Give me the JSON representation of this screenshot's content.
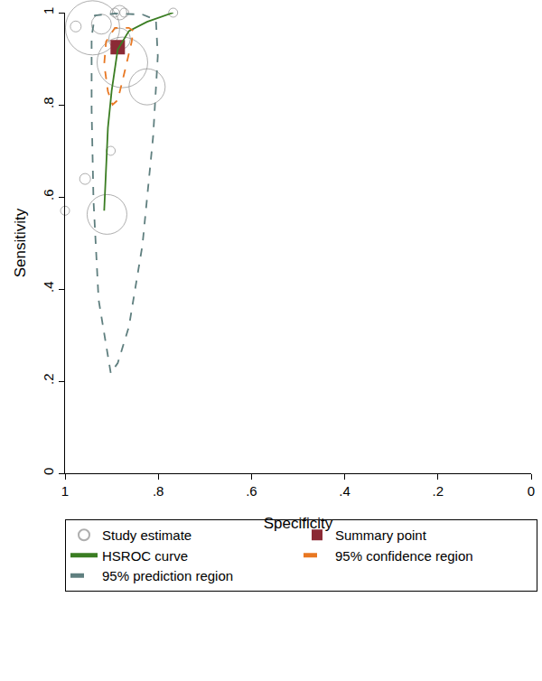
{
  "chart_data": {
    "type": "scatter",
    "xlabel": "Specificity",
    "ylabel": "Sensitivity",
    "xlim": [
      1,
      0
    ],
    "ylim": [
      0,
      1
    ],
    "xticks": [
      {
        "value": 1,
        "label": "1"
      },
      {
        "value": 0.8,
        "label": ".8"
      },
      {
        "value": 0.6,
        "label": ".6"
      },
      {
        "value": 0.4,
        "label": ".4"
      },
      {
        "value": 0.2,
        "label": ".2"
      },
      {
        "value": 0,
        "label": "0"
      }
    ],
    "yticks": [
      {
        "value": 0,
        "label": "0"
      },
      {
        "value": 0.2,
        "label": ".2"
      },
      {
        "value": 0.4,
        "label": ".4"
      },
      {
        "value": 0.6,
        "label": ".6"
      },
      {
        "value": 0.8,
        "label": ".8"
      },
      {
        "value": 1,
        "label": "1"
      }
    ],
    "grid": false,
    "legend": "bottom",
    "series": [
      {
        "name": "Study estimate",
        "type": "scatter",
        "marker": "circle-open",
        "color": "#8c8c8c",
        "x": [
          0.768,
          0.893,
          0.883,
          0.873,
          0.941,
          0.977,
          0.922,
          0.883,
          0.877,
          0.824,
          0.902,
          0.957,
          1.0,
          0.91
        ],
        "values": [
          1.0,
          1.0,
          1.0,
          1.0,
          0.967,
          0.97,
          0.975,
          0.943,
          0.892,
          0.839,
          0.7,
          0.639,
          0.57,
          0.562
        ],
        "sizes": [
          10,
          10,
          16,
          10,
          60,
          12,
          22,
          24,
          56,
          40,
          10,
          12,
          10,
          44
        ]
      },
      {
        "name": "Summary point",
        "type": "scatter",
        "marker": "square",
        "color": "#8b2a35",
        "x": [
          0.887
        ],
        "values": [
          0.925
        ]
      },
      {
        "name": "HSROC curve",
        "type": "line",
        "line_style": "solid",
        "color": "#3a7d22",
        "x": [
          0.916,
          0.908,
          0.9,
          0.887,
          0.863,
          0.824,
          0.768
        ],
        "values": [
          0.57,
          0.75,
          0.83,
          0.92,
          0.96,
          0.98,
          1.0
        ]
      },
      {
        "name": "95% confidence region",
        "type": "line",
        "line_style": "dash",
        "color": "#e87722",
        "x": [
          0.854,
          0.863,
          0.893,
          0.912,
          0.916,
          0.908,
          0.898,
          0.887,
          0.873,
          0.857,
          0.854
        ],
        "values": [
          0.961,
          0.967,
          0.967,
          0.937,
          0.888,
          0.829,
          0.8,
          0.81,
          0.868,
          0.937,
          0.961
        ]
      },
      {
        "name": "95% prediction region",
        "type": "line",
        "line_style": "dash",
        "color": "#5f7f7f",
        "x": [
          0.902,
          0.928,
          0.939,
          0.943,
          0.943,
          0.936,
          0.893,
          0.834,
          0.805,
          0.801,
          0.811,
          0.834,
          0.863,
          0.887,
          0.902
        ],
        "values": [
          0.218,
          0.377,
          0.593,
          0.79,
          0.947,
          0.994,
          0.998,
          0.996,
          0.984,
          0.906,
          0.731,
          0.495,
          0.318,
          0.239,
          0.218
        ]
      }
    ]
  }
}
